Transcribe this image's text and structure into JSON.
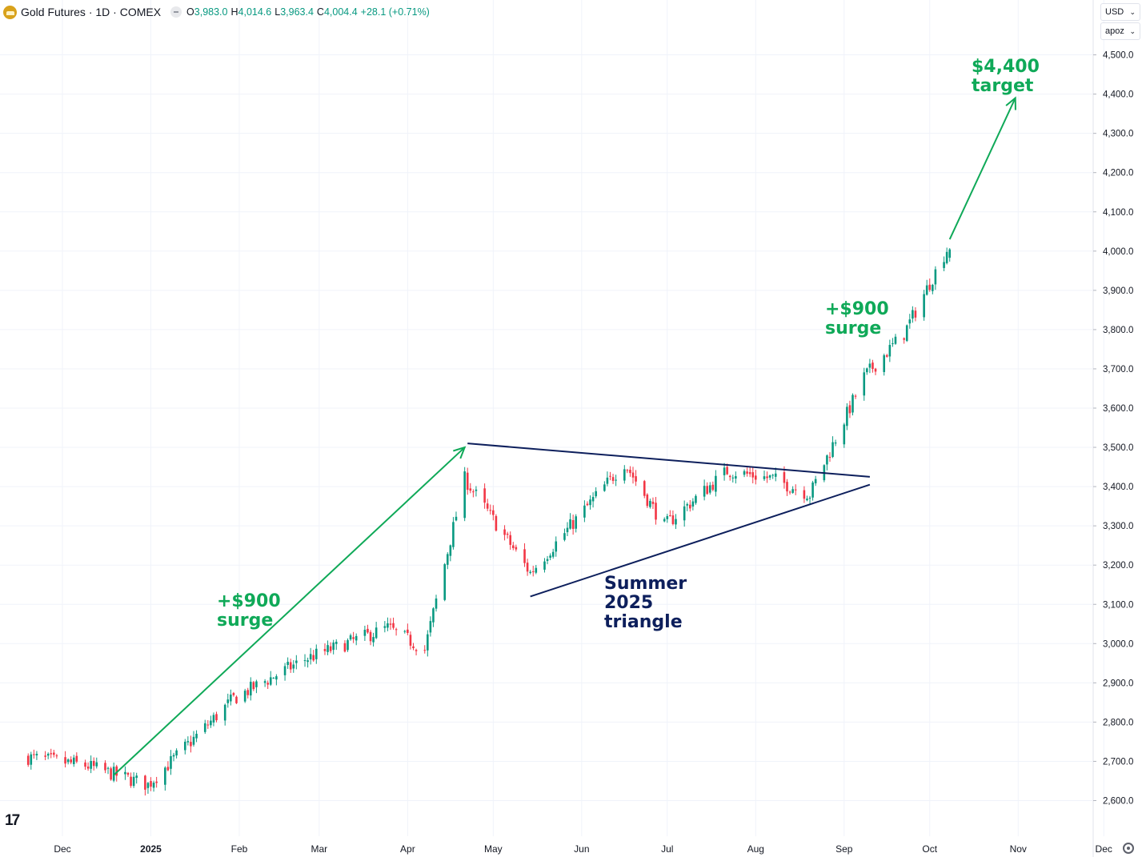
{
  "header": {
    "symbol_title": "Gold Futures · 1D · COMEX",
    "open_label": "O",
    "open": "3,983.0",
    "high_label": "H",
    "high": "4,014.6",
    "low_label": "L",
    "low": "3,963.4",
    "close_label": "C",
    "close": "4,004.4",
    "change": "+28.1 (+0.71%)"
  },
  "controls": {
    "currency": "USD",
    "scale_mode": "apoz"
  },
  "colors": {
    "up": "#089981",
    "down": "#f23645",
    "annotation_green": "#0fa958",
    "annotation_navy": "#0d1f5c"
  },
  "chart_data": {
    "type": "candlestick",
    "symbol": "Gold Futures",
    "interval": "1D",
    "exchange": "COMEX",
    "x_axis": {
      "tick_labels": [
        "Dec",
        "2025",
        "Feb",
        "Mar",
        "Apr",
        "May",
        "Jun",
        "Jul",
        "Aug",
        "Sep",
        "Oct",
        "Nov",
        "Dec"
      ]
    },
    "y_axis": {
      "ylim": [
        2540,
        4580
      ],
      "ticks": [
        2600,
        2700,
        2800,
        2900,
        3000,
        3100,
        3200,
        3300,
        3400,
        3500,
        3600,
        3700,
        3800,
        3900,
        4000,
        4100,
        4200,
        4300,
        4400,
        4500
      ],
      "tick_labels": [
        "2,600.0",
        "2,700.0",
        "2,800.0",
        "2,900.0",
        "3,000.0",
        "3,100.0",
        "3,200.0",
        "3,300.0",
        "3,400.0",
        "3,500.0",
        "3,600.0",
        "3,700.0",
        "3,800.0",
        "3,900.0",
        "4,000.0",
        "4,100.0",
        "4,200.0",
        "4,300.0",
        "4,400.0",
        "4,500.0"
      ]
    },
    "dates": [
      "2024-11-19",
      "2024-12-09",
      "2024-12-31",
      "2025-01-30",
      "2025-02-24",
      "2025-03-25",
      "2025-04-07",
      "2025-04-21",
      "2025-05-14",
      "2025-06-16",
      "2025-06-30",
      "2025-07-22",
      "2025-08-07",
      "2025-08-20",
      "2025-09-08",
      "2025-09-22",
      "2025-10-07"
    ],
    "closes": [
      2710,
      2690,
      2640,
      2860,
      2960,
      3040,
      2985,
      3420,
      3180,
      3460,
      3300,
      3440,
      3420,
      3380,
      3680,
      3790,
      4004
    ],
    "last_bar": {
      "open": 3983.0,
      "high": 4014.6,
      "low": 3963.4,
      "close": 4004.4,
      "change": 28.1,
      "change_pct": 0.71
    },
    "grid": true,
    "annotations": [
      {
        "text_lines": [
          "+$900",
          "surge"
        ],
        "color": "green"
      },
      {
        "text_lines": [
          "Summer",
          "2025",
          "triangle"
        ],
        "color": "navy"
      },
      {
        "text_lines": [
          "+$900",
          "surge"
        ],
        "color": "green"
      },
      {
        "text_lines": [
          "$4,400",
          "target"
        ],
        "color": "green"
      }
    ],
    "drawings": [
      {
        "type": "arrow",
        "color": "green",
        "from": [
          "2024-12-19",
          2665
        ],
        "to": [
          "2025-04-21",
          3500
        ]
      },
      {
        "type": "trendline",
        "color": "navy",
        "name": "triangle-upper",
        "from": [
          "2025-04-22",
          3510
        ],
        "to": [
          "2025-09-10",
          3425
        ]
      },
      {
        "type": "trendline",
        "color": "navy",
        "name": "triangle-lower",
        "from": [
          "2025-05-14",
          3120
        ],
        "to": [
          "2025-09-10",
          3405
        ]
      },
      {
        "type": "arrow",
        "color": "green",
        "from": [
          "2025-10-08",
          4030
        ],
        "to": [
          "2025-10-31",
          4390
        ]
      }
    ]
  }
}
